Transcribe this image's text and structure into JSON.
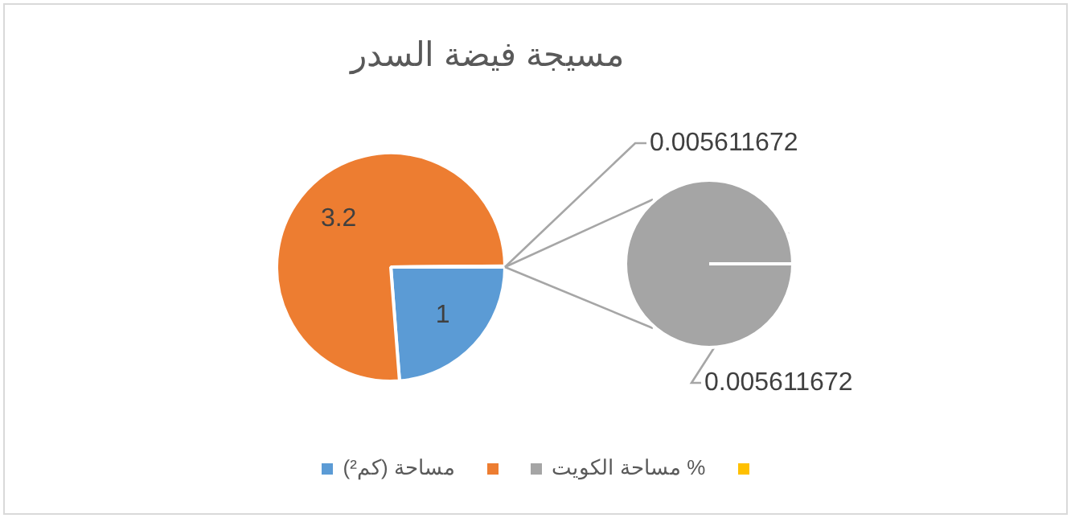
{
  "chart_data": {
    "type": "pie",
    "title": "مسيجة فيضة السدر",
    "categories": [
      "مساحة (كم²)",
      null,
      "مساحة الكويت %",
      null
    ],
    "values": [
      1,
      3.2,
      0.005611672,
      null
    ],
    "colors": [
      "#5b9bd5",
      "#ed7d31",
      "#a5a5a5",
      "#ffc000"
    ],
    "data_labels": true,
    "legend": "bottom",
    "annotations": [
      "0.005611672"
    ]
  }
}
